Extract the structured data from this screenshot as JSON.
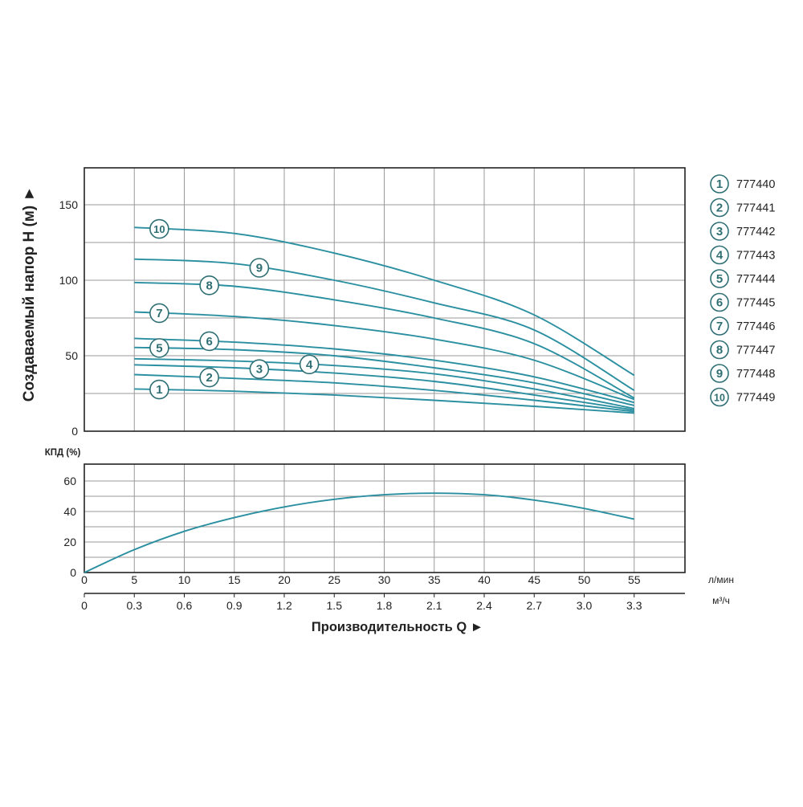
{
  "chart_data": [
    {
      "type": "line",
      "ylabel": "Создаваемый напор H (м) ►",
      "ylim": [
        0,
        175
      ],
      "xlim": [
        0,
        60
      ],
      "yticks": [
        "0",
        "50",
        "100",
        "150"
      ],
      "grid": true,
      "legend_position": "right",
      "series": [
        {
          "name": "777440",
          "marker": "1",
          "x": [
            5,
            15,
            25,
            35,
            45,
            55
          ],
          "y": [
            28,
            26.5,
            24,
            20.5,
            16.5,
            12
          ]
        },
        {
          "name": "777441",
          "marker": "2",
          "x": [
            5,
            15,
            25,
            35,
            45,
            55
          ],
          "y": [
            37.5,
            35,
            32,
            27,
            20.5,
            13
          ]
        },
        {
          "name": "777442",
          "marker": "3",
          "x": [
            5,
            15,
            25,
            35,
            45,
            55
          ],
          "y": [
            44,
            42,
            38.5,
            33,
            24,
            14
          ]
        },
        {
          "name": "777443",
          "marker": "4",
          "x": [
            5,
            15,
            25,
            35,
            45,
            55
          ],
          "y": [
            48,
            46.5,
            43.5,
            38,
            28,
            15
          ]
        },
        {
          "name": "777444",
          "marker": "5",
          "x": [
            5,
            15,
            25,
            35,
            45,
            55
          ],
          "y": [
            55.5,
            54,
            50,
            42,
            32,
            17
          ]
        },
        {
          "name": "777445",
          "marker": "6",
          "x": [
            5,
            15,
            25,
            35,
            45,
            55
          ],
          "y": [
            61.5,
            59,
            54.5,
            47,
            36,
            19
          ]
        },
        {
          "name": "777446",
          "marker": "7",
          "x": [
            5,
            15,
            25,
            35,
            45,
            55
          ],
          "y": [
            79,
            76,
            70,
            61,
            47,
            21
          ]
        },
        {
          "name": "777447",
          "marker": "8",
          "x": [
            5,
            15,
            25,
            35,
            45,
            55
          ],
          "y": [
            98.5,
            96,
            87,
            75,
            58,
            22
          ]
        },
        {
          "name": "777448",
          "marker": "9",
          "x": [
            5,
            15,
            25,
            35,
            45,
            55
          ],
          "y": [
            114,
            111,
            100,
            85,
            67,
            27
          ]
        },
        {
          "name": "777449",
          "marker": "10",
          "x": [
            5,
            15,
            25,
            35,
            45,
            55
          ],
          "y": [
            135,
            131,
            118,
            100,
            77,
            37
          ]
        }
      ]
    },
    {
      "type": "line",
      "ylabel": "КПД (%)",
      "ylim": [
        0,
        70
      ],
      "xlim": [
        0,
        60
      ],
      "yticks": [
        "0",
        "20",
        "40",
        "60"
      ],
      "grid": true,
      "series": [
        {
          "x": [
            0,
            5,
            10,
            15,
            20,
            25,
            30,
            35,
            40,
            45,
            50,
            55
          ],
          "y": [
            0,
            15,
            27,
            36,
            43,
            48,
            51,
            52,
            51,
            47.5,
            42,
            35
          ]
        }
      ]
    }
  ],
  "x_axis": {
    "title": "Производительность Q ►",
    "lpm_unit": "л/мин",
    "m3h_unit": "м³/ч",
    "lpm_ticks": [
      "0",
      "5",
      "10",
      "15",
      "20",
      "25",
      "30",
      "35",
      "40",
      "45",
      "50",
      "55"
    ],
    "m3h_ticks": [
      "0",
      "0.3",
      "0.6",
      "0.9",
      "1.2",
      "1.5",
      "1.8",
      "2.1",
      "2.4",
      "2.7",
      "3.0",
      "3.3"
    ]
  },
  "legend": [
    {
      "marker": "1",
      "label": "777440"
    },
    {
      "marker": "2",
      "label": "777441"
    },
    {
      "marker": "3",
      "label": "777442"
    },
    {
      "marker": "4",
      "label": "777443"
    },
    {
      "marker": "5",
      "label": "777444"
    },
    {
      "marker": "6",
      "label": "777445"
    },
    {
      "marker": "7",
      "label": "777446"
    },
    {
      "marker": "8",
      "label": "777447"
    },
    {
      "marker": "9",
      "label": "777448"
    },
    {
      "marker": "10",
      "label": "777449"
    }
  ],
  "colors": {
    "curve": "#2a8fa0",
    "grid": "#9a9a9a",
    "frame": "#222222",
    "marker_ring": "#2f6f74",
    "marker_text": "#2f6f74"
  }
}
